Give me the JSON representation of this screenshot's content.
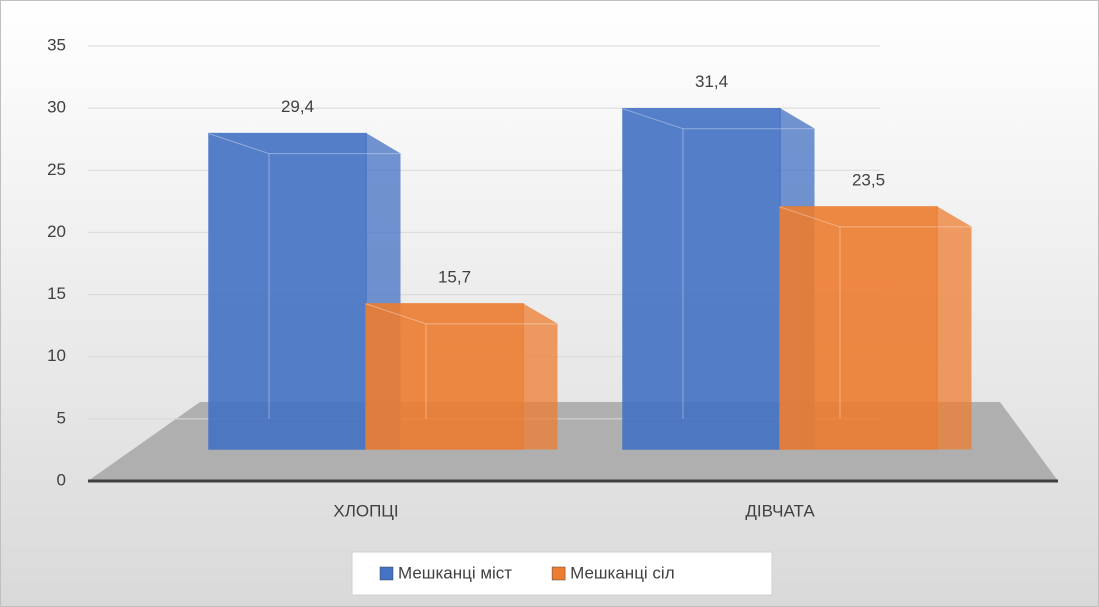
{
  "chart_data": {
    "type": "bar3d",
    "categories": [
      "ХЛОПЦІ",
      "ДІВЧАТА"
    ],
    "series": [
      {
        "name": "Мешканці міст",
        "color": "#4472c4",
        "values": [
          29.4,
          31.4
        ],
        "value_labels": [
          "29,4",
          "31,4"
        ]
      },
      {
        "name": "Мешканці сіл",
        "color": "#ed7d31",
        "values": [
          15.7,
          23.5
        ],
        "value_labels": [
          "15,7",
          "23,5"
        ]
      }
    ],
    "ylim": [
      0,
      35
    ],
    "yticks": [
      0,
      5,
      10,
      15,
      20,
      25,
      30,
      35
    ],
    "grid": true,
    "legend": "bottom"
  }
}
